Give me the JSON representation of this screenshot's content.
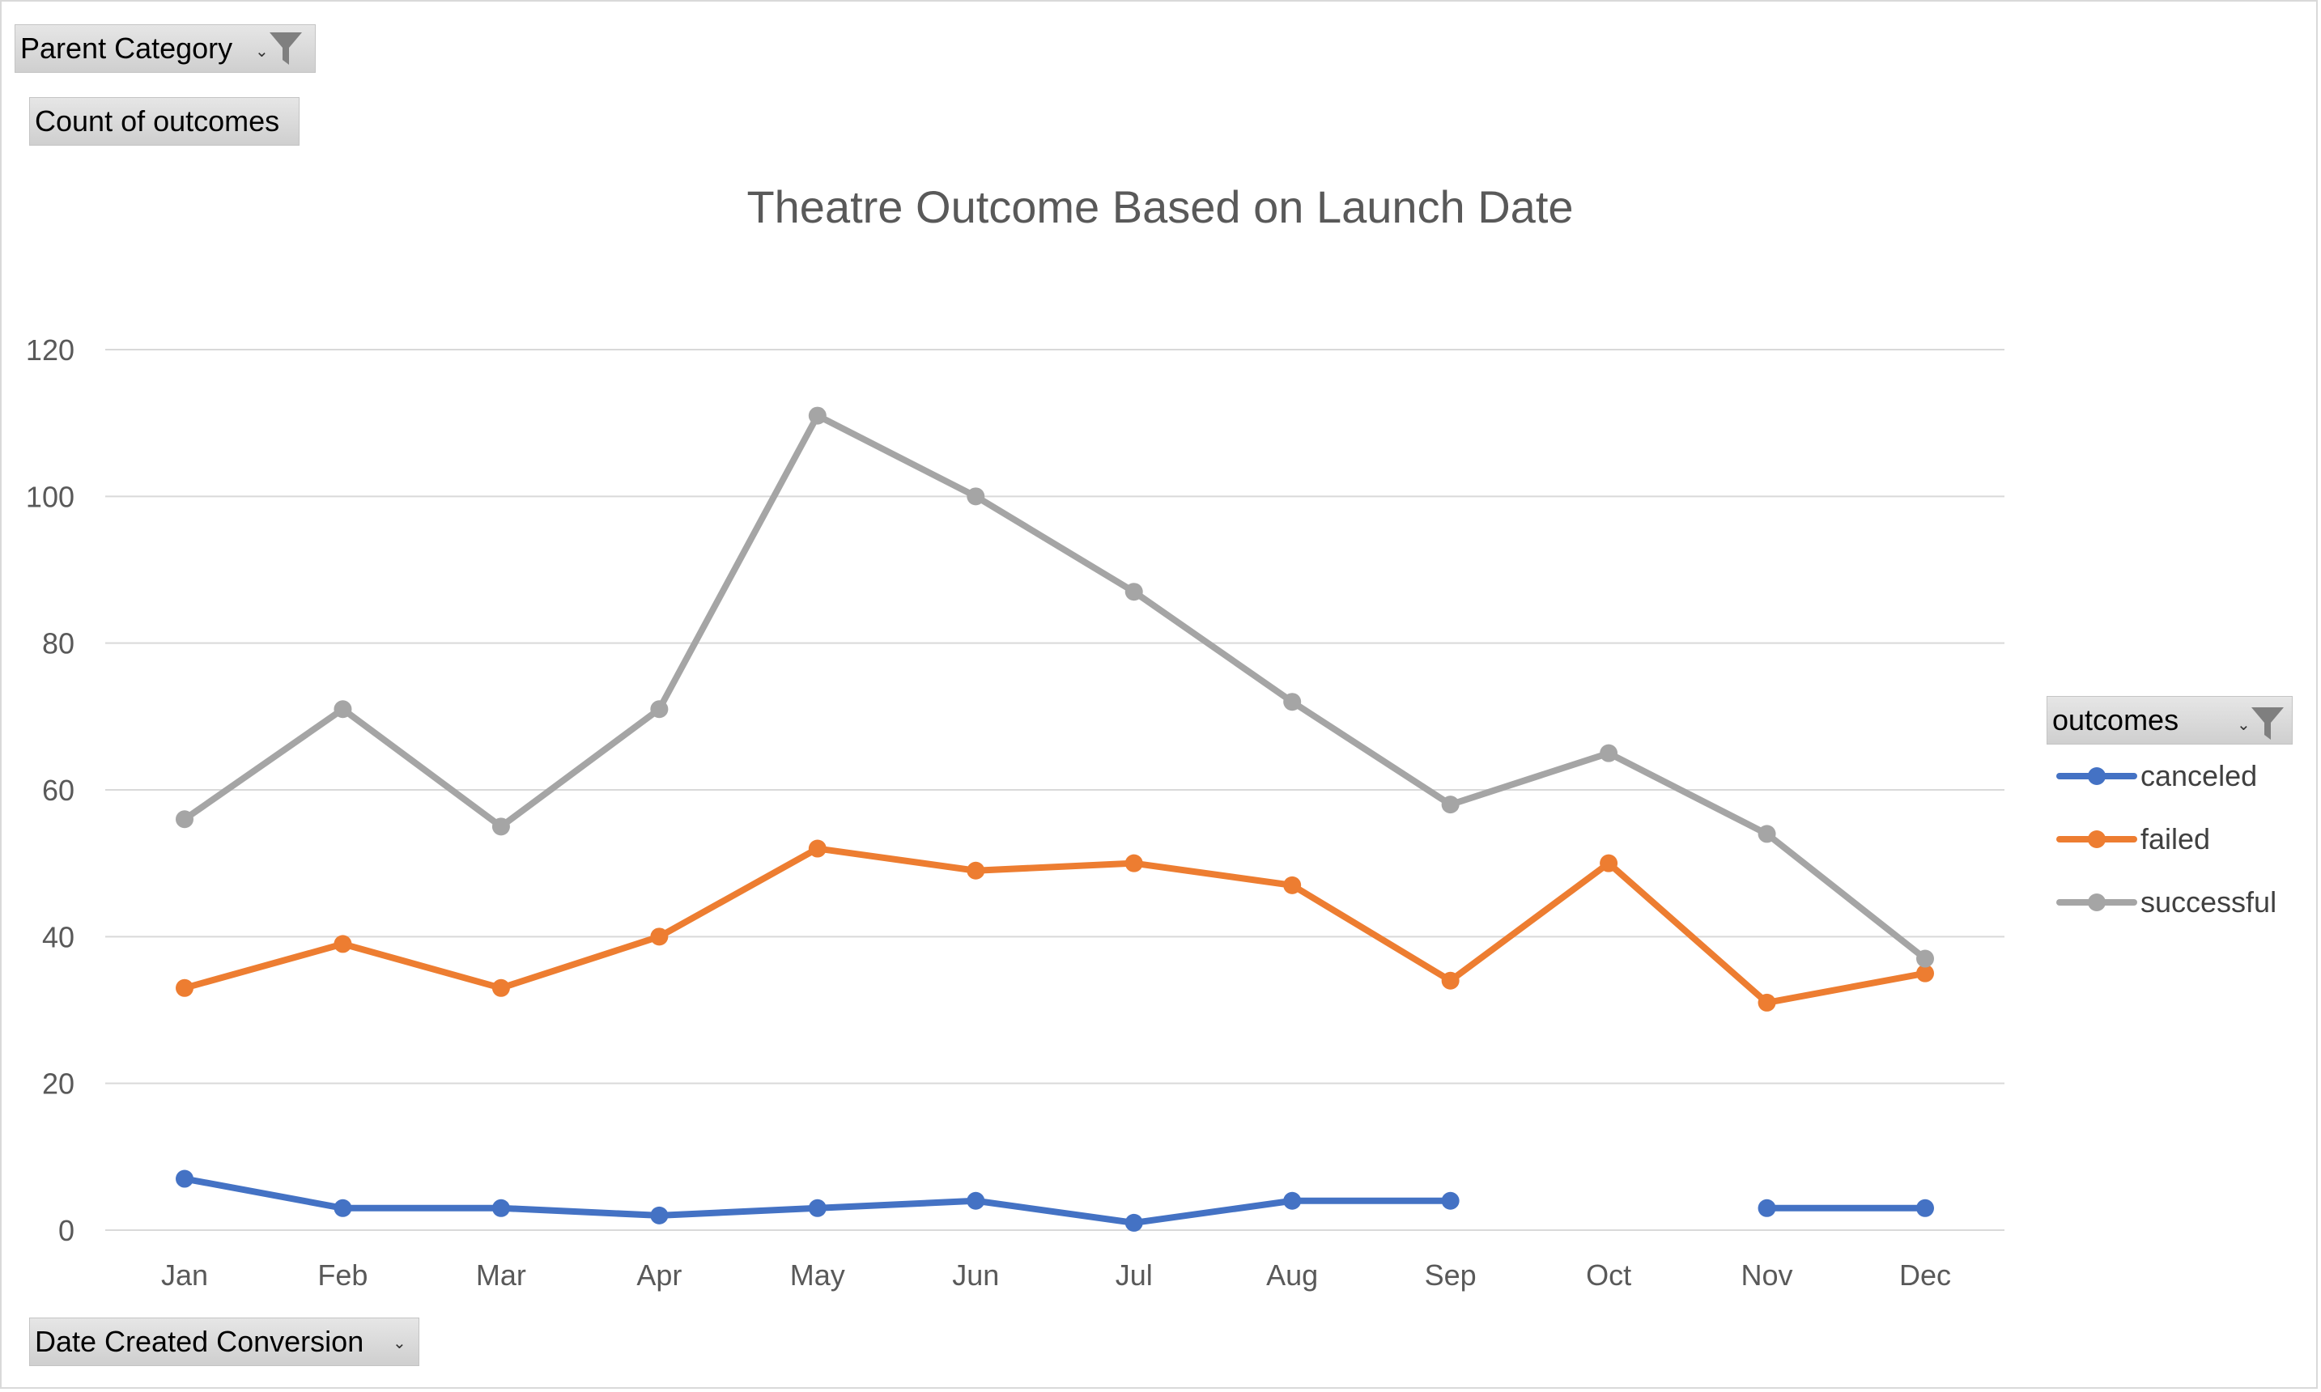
{
  "pivot": {
    "filter_field": "Parent Category",
    "value_field": "Count of outcomes",
    "axis_field": "Date Created Conversion",
    "legend_field": "outcomes"
  },
  "chart_data": {
    "type": "line",
    "title": "Theatre Outcome Based on Launch Date",
    "xlabel": "",
    "ylabel": "",
    "categories": [
      "Jan",
      "Feb",
      "Mar",
      "Apr",
      "May",
      "Jun",
      "Jul",
      "Aug",
      "Sep",
      "Oct",
      "Nov",
      "Dec"
    ],
    "ylim": [
      0,
      120
    ],
    "yticks": [
      "0",
      "20",
      "40",
      "60",
      "80",
      "100",
      "120"
    ],
    "grid": true,
    "legend_position": "right",
    "series": [
      {
        "name": "canceled",
        "color": "#4472c4",
        "values": [
          7,
          3,
          3,
          2,
          3,
          4,
          1,
          4,
          4,
          null,
          3,
          3
        ]
      },
      {
        "name": "failed",
        "color": "#ed7d31",
        "values": [
          33,
          39,
          33,
          40,
          52,
          49,
          50,
          47,
          34,
          50,
          31,
          35
        ]
      },
      {
        "name": "successful",
        "color": "#a5a5a5",
        "values": [
          56,
          71,
          55,
          71,
          111,
          100,
          87,
          72,
          58,
          65,
          54,
          37
        ]
      }
    ]
  }
}
